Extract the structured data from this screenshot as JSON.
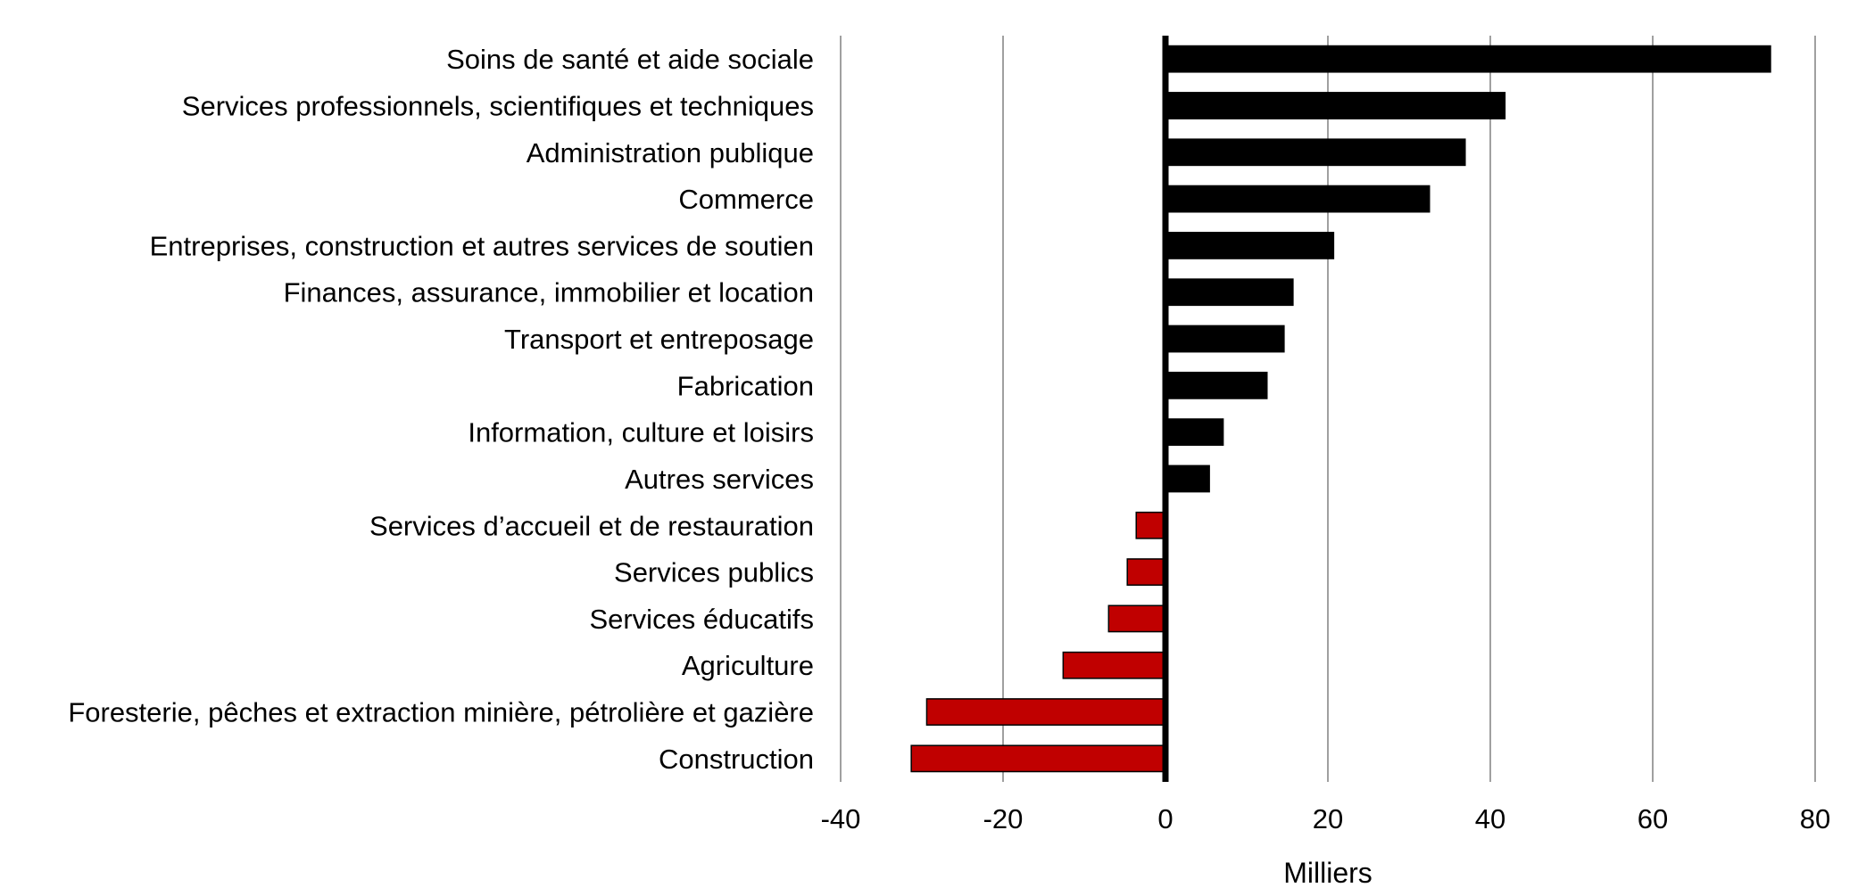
{
  "chart_data": {
    "type": "bar",
    "orientation": "horizontal",
    "categories": [
      "Soins de santé et aide sociale",
      "Services professionnels, scientifiques et techniques",
      "Administration publique",
      "Commerce",
      "Entreprises, construction et autres services de soutien",
      "Finances, assurance, immobilier et location",
      "Transport et entreposage",
      "Fabrication",
      "Information, culture et loisirs",
      "Autres services",
      "Services d’accueil et de restauration",
      "Services publics",
      "Services éducatifs",
      "Agriculture",
      "Foresterie, pêches et extraction minière, pétrolière et gazière",
      "Construction"
    ],
    "values": [
      74.5,
      41.8,
      36.9,
      32.5,
      20.7,
      15.7,
      14.6,
      12.5,
      7.1,
      5.4,
      -3.6,
      -4.7,
      -7.0,
      -12.6,
      -29.4,
      -31.3
    ],
    "xlabel": "Milliers",
    "ylabel": "",
    "xlim": [
      -40,
      80
    ],
    "xticks": [
      -40,
      -20,
      0,
      20,
      40,
      60,
      80
    ],
    "xtick_labels": [
      "-40",
      "-20",
      "0",
      "20",
      "40",
      "60",
      "80"
    ],
    "grid": "vertical",
    "legend": "none",
    "colors": {
      "positive": "#000000",
      "negative": "#c00000"
    }
  }
}
